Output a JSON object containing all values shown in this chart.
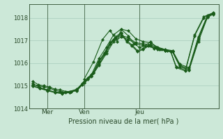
{
  "title": "Pression niveau de la mer( hPa )",
  "bg_color": "#cce8d8",
  "grid_color": "#a8ccbc",
  "line_color": "#1a5c1a",
  "axis_color": "#2a4a2a",
  "ylim": [
    1014.0,
    1018.6
  ],
  "yticks": [
    1014,
    1015,
    1016,
    1017,
    1018
  ],
  "xtick_labels": [
    "Mer",
    "Ven",
    "Jeu"
  ],
  "xtick_positions": [
    0.1,
    0.3,
    0.6
  ],
  "vline_positions": [
    0.1,
    0.3,
    0.6
  ],
  "lines": [
    [
      0.02,
      1015.2,
      0.05,
      1015.05,
      0.08,
      1015.0,
      0.11,
      1014.95,
      0.14,
      1014.85,
      0.17,
      1014.82,
      0.2,
      1014.75,
      0.23,
      1014.75,
      0.26,
      1014.78,
      0.29,
      1015.05,
      0.32,
      1015.3,
      0.35,
      1015.55,
      0.38,
      1016.05,
      0.41,
      1016.4,
      0.44,
      1016.85,
      0.47,
      1017.1,
      0.5,
      1017.3,
      0.53,
      1016.95,
      0.56,
      1016.75,
      0.59,
      1016.5,
      0.62,
      1016.6,
      0.65,
      1016.75,
      0.68,
      1016.65,
      0.71,
      1016.6,
      0.74,
      1016.55,
      0.77,
      1016.5,
      0.8,
      1015.8,
      0.85,
      1015.65,
      0.9,
      1017.2,
      0.95,
      1018.0,
      1.0,
      1018.2
    ],
    [
      0.02,
      1015.05,
      0.05,
      1015.0,
      0.08,
      1014.95,
      0.11,
      1014.9,
      0.14,
      1014.8,
      0.17,
      1014.75,
      0.2,
      1014.72,
      0.23,
      1014.75,
      0.26,
      1014.82,
      0.29,
      1015.1,
      0.32,
      1015.35,
      0.35,
      1015.6,
      0.38,
      1016.1,
      0.41,
      1016.45,
      0.44,
      1016.9,
      0.47,
      1017.15,
      0.5,
      1017.35,
      0.53,
      1017.0,
      0.56,
      1016.8,
      0.59,
      1016.55,
      0.62,
      1016.65,
      0.65,
      1016.78,
      0.68,
      1016.68,
      0.71,
      1016.62,
      0.74,
      1016.57,
      0.77,
      1016.52,
      0.8,
      1015.85,
      0.85,
      1015.7,
      0.9,
      1017.25,
      0.95,
      1018.05,
      1.0,
      1018.22
    ],
    [
      0.02,
      1015.1,
      0.06,
      1014.92,
      0.1,
      1014.82,
      0.14,
      1014.72,
      0.18,
      1014.7,
      0.22,
      1014.75,
      0.26,
      1014.85,
      0.3,
      1015.2,
      0.34,
      1015.5,
      0.38,
      1016.2,
      0.42,
      1016.7,
      0.46,
      1017.25,
      0.5,
      1017.5,
      0.54,
      1017.42,
      0.58,
      1017.08,
      0.62,
      1016.95,
      0.66,
      1016.9,
      0.7,
      1016.7,
      0.74,
      1016.6,
      0.78,
      1016.55,
      0.82,
      1015.95,
      0.87,
      1015.8,
      0.92,
      1017.15,
      0.97,
      1018.1,
      1.0,
      1018.2
    ],
    [
      0.02,
      1015.0,
      0.06,
      1014.9,
      0.1,
      1014.8,
      0.14,
      1014.72,
      0.18,
      1014.68,
      0.22,
      1014.72,
      0.26,
      1014.82,
      0.3,
      1015.15,
      0.34,
      1015.45,
      0.38,
      1015.95,
      0.42,
      1016.5,
      0.46,
      1017.05,
      0.5,
      1017.22,
      0.54,
      1017.12,
      0.58,
      1016.9,
      0.62,
      1016.85,
      0.66,
      1016.82,
      0.7,
      1016.65,
      0.74,
      1016.58,
      0.78,
      1016.52,
      0.82,
      1015.9,
      0.87,
      1015.75,
      0.92,
      1017.05,
      0.97,
      1018.05,
      1.0,
      1018.18
    ],
    [
      0.02,
      1014.98,
      0.06,
      1014.88,
      0.1,
      1014.78,
      0.14,
      1014.7,
      0.18,
      1014.65,
      0.22,
      1014.7,
      0.26,
      1014.8,
      0.3,
      1015.12,
      0.34,
      1015.4,
      0.38,
      1015.9,
      0.42,
      1016.42,
      0.46,
      1016.95,
      0.5,
      1017.15,
      0.54,
      1017.05,
      0.58,
      1016.85,
      0.62,
      1016.78,
      0.66,
      1016.75,
      0.7,
      1016.6,
      0.74,
      1016.55,
      0.78,
      1016.5,
      0.82,
      1015.85,
      0.87,
      1015.7,
      0.92,
      1016.95,
      0.97,
      1018.02,
      1.0,
      1018.15
    ]
  ],
  "special_line": [
    0.3,
    1015.3,
    0.35,
    1016.05,
    0.4,
    1017.05,
    0.44,
    1017.45,
    0.48,
    1016.95,
    0.5,
    1017.5,
    0.54,
    1017.2,
    0.57,
    1016.85,
    0.6,
    1016.7,
    0.63,
    1016.75,
    0.66,
    1016.95,
    0.69,
    1016.7,
    0.72,
    1016.62,
    0.75,
    1016.55,
    0.78,
    1016.5,
    0.82,
    1015.85,
    0.87,
    1015.7,
    0.92,
    1017.1,
    0.97,
    1018.08,
    1.0,
    1018.2
  ]
}
